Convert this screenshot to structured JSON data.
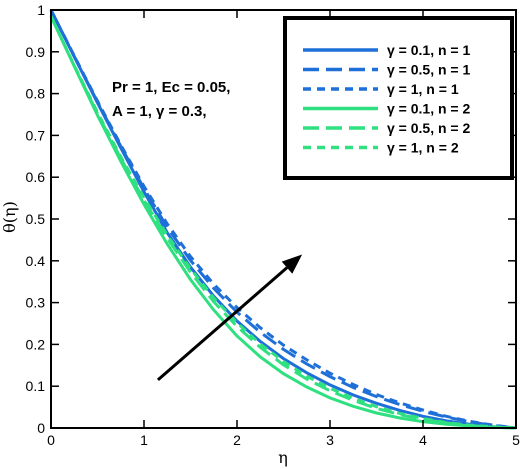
{
  "chart_data": {
    "type": "line",
    "xlabel": "η",
    "ylabel": "θ(η)",
    "xlim": [
      0,
      5
    ],
    "ylim": [
      0,
      1
    ],
    "x_ticks": [
      "0",
      "1",
      "2",
      "3",
      "4",
      "5"
    ],
    "y_ticks": [
      "0",
      "0.1",
      "0.2",
      "0.3",
      "0.4",
      "0.5",
      "0.6",
      "0.7",
      "0.8",
      "0.9",
      "1"
    ],
    "grid": false,
    "legend_position": "top-right",
    "annotation_lines": [
      "Pr = 1, Ec = 0.05,",
      "A = 1, γ = 0.3,"
    ],
    "arrow": {
      "from": [
        1.15,
        0.115
      ],
      "to": [
        2.7,
        0.415
      ]
    },
    "x": [
      0,
      0.25,
      0.5,
      0.75,
      1,
      1.25,
      1.5,
      1.75,
      2,
      2.25,
      2.5,
      2.75,
      3,
      3.25,
      3.5,
      3.75,
      4,
      4.25,
      4.5,
      4.75,
      5
    ],
    "series": [
      {
        "name": "γ = 0.1, n = 1",
        "color": "#1f6fd8",
        "dash": "solid",
        "values": [
          1.0,
          0.888,
          0.778,
          0.67,
          0.565,
          0.467,
          0.385,
          0.315,
          0.256,
          0.207,
          0.166,
          0.132,
          0.103,
          0.079,
          0.059,
          0.042,
          0.028,
          0.017,
          0.009,
          0.003,
          0.0
        ]
      },
      {
        "name": "γ = 0.5, n = 1",
        "color": "#1f6fd8",
        "dash": "long",
        "values": [
          1.0,
          0.889,
          0.78,
          0.674,
          0.573,
          0.48,
          0.401,
          0.334,
          0.277,
          0.229,
          0.188,
          0.153,
          0.123,
          0.097,
          0.075,
          0.056,
          0.04,
          0.026,
          0.015,
          0.006,
          0.0
        ]
      },
      {
        "name": "γ = 1, n = 1",
        "color": "#1f6fd8",
        "dash": "short",
        "values": [
          1.0,
          0.89,
          0.782,
          0.677,
          0.578,
          0.488,
          0.41,
          0.344,
          0.288,
          0.24,
          0.198,
          0.163,
          0.131,
          0.104,
          0.08,
          0.06,
          0.043,
          0.028,
          0.016,
          0.007,
          0.0
        ]
      },
      {
        "name": "γ = 0.1, n = 2",
        "color": "#2ee07f",
        "dash": "solid",
        "values": [
          0.985,
          0.865,
          0.748,
          0.638,
          0.535,
          0.44,
          0.355,
          0.282,
          0.22,
          0.17,
          0.13,
          0.098,
          0.072,
          0.052,
          0.036,
          0.024,
          0.015,
          0.009,
          0.005,
          0.002,
          0.0
        ]
      },
      {
        "name": "γ = 0.5, n = 2",
        "color": "#2ee07f",
        "dash": "long",
        "values": [
          0.985,
          0.866,
          0.752,
          0.645,
          0.545,
          0.454,
          0.373,
          0.302,
          0.243,
          0.193,
          0.151,
          0.117,
          0.089,
          0.066,
          0.047,
          0.032,
          0.021,
          0.012,
          0.006,
          0.002,
          0.0
        ]
      },
      {
        "name": "γ = 1, n = 2",
        "color": "#2ee07f",
        "dash": "short",
        "values": [
          0.985,
          0.867,
          0.755,
          0.649,
          0.551,
          0.461,
          0.381,
          0.311,
          0.252,
          0.201,
          0.159,
          0.124,
          0.095,
          0.071,
          0.051,
          0.035,
          0.023,
          0.013,
          0.007,
          0.003,
          0.0
        ]
      }
    ]
  }
}
